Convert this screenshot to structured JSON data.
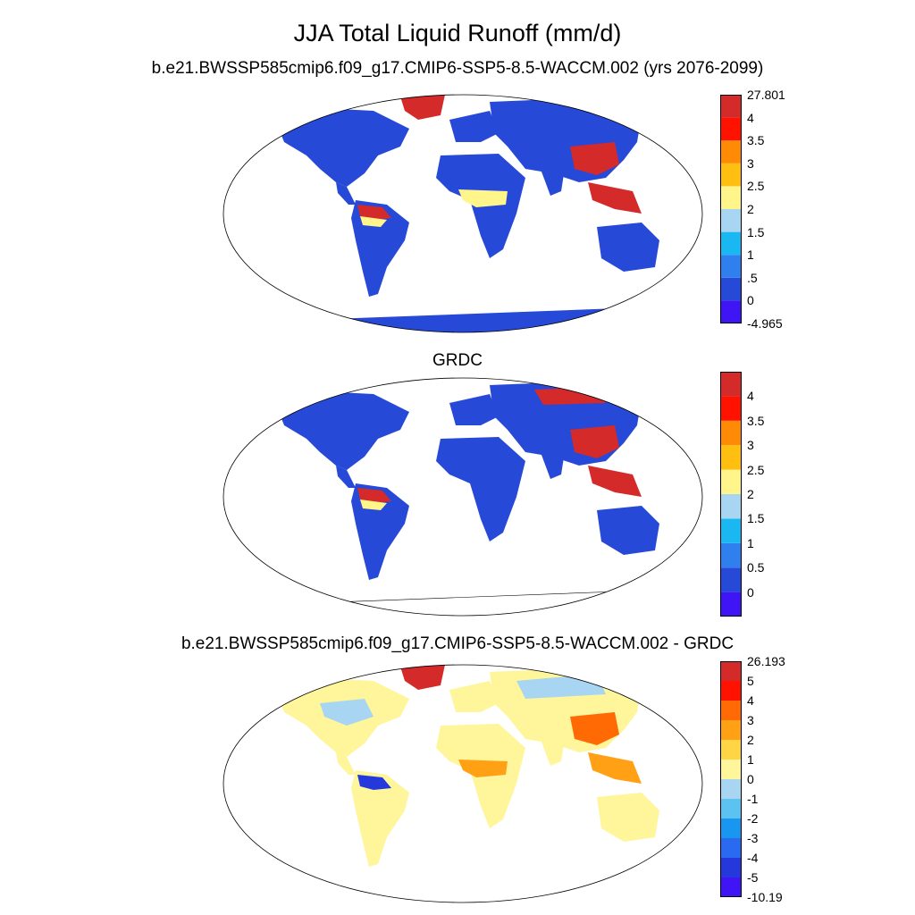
{
  "title": "JJA Total Liquid Runoff (mm/d)",
  "panels": [
    {
      "title": "b.e21.BWSSP585cmip6.f09_g17.CMIP6-SSP5-8.5-WACCM.002 (yrs 2076-2099)",
      "colors": [
        "#3f14f5",
        "#2749d8",
        "#2f7fef",
        "#1ab8f2",
        "#a7d5f2",
        "#fff58a",
        "#ffbf10",
        "#ff8a05",
        "#ff1200",
        "#d42a2a"
      ],
      "labels": [
        "27.801",
        "4",
        "3.5",
        "3",
        "2.5",
        "2",
        ".5",
        "0",
        "-4.965"
      ],
      "labels_top_to_bottom": [
        "27.801",
        "4",
        "3.5",
        "3",
        "2.5",
        "2",
        "1.5",
        "1",
        ".5",
        "0",
        "-4.965"
      ]
    },
    {
      "title": "GRDC",
      "colors": [
        "#3f14f5",
        "#2749d8",
        "#2f7fef",
        "#1ab8f2",
        "#a7d5f2",
        "#fff58a",
        "#ffbf10",
        "#ff8a05",
        "#ff1200",
        "#d42a2a"
      ],
      "labels_top_to_bottom": [
        "4",
        "3.5",
        "3",
        "2.5",
        "2",
        "1.5",
        "1",
        "0.5",
        "0"
      ]
    },
    {
      "title": "b.e21.BWSSP585cmip6.f09_g17.CMIP6-SSP5-8.5-WACCM.002 - GRDC",
      "colors": [
        "#3f14f5",
        "#2438dc",
        "#2a6af0",
        "#1996f0",
        "#5cc2f2",
        "#a7d5f2",
        "#fff59a",
        "#ffd545",
        "#ffa015",
        "#ff6a05",
        "#ff1200",
        "#d42a2a"
      ],
      "labels_top_to_bottom": [
        "26.193",
        "5",
        "4",
        "3",
        "2",
        "1",
        "0",
        "-1",
        "-2",
        "-3",
        "-4",
        "-5",
        "-10.19"
      ]
    }
  ]
}
